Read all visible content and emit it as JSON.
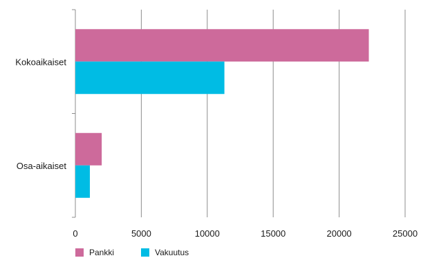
{
  "chart_data": {
    "type": "bar",
    "orientation": "horizontal",
    "categories": [
      "Kokoaikaiset",
      "Osa-aikaiset"
    ],
    "series": [
      {
        "name": "Pankki",
        "values": [
          22250,
          2000
        ],
        "color": "#cd6a9b"
      },
      {
        "name": "Vakuutus",
        "values": [
          11300,
          1100
        ],
        "color": "#00bce4"
      }
    ],
    "xlim": [
      0,
      25000
    ],
    "xticks": [
      0,
      5000,
      10000,
      15000,
      20000,
      25000
    ],
    "grid": true,
    "legend": "bottom-left",
    "title": "",
    "xlabel": "",
    "ylabel": ""
  }
}
